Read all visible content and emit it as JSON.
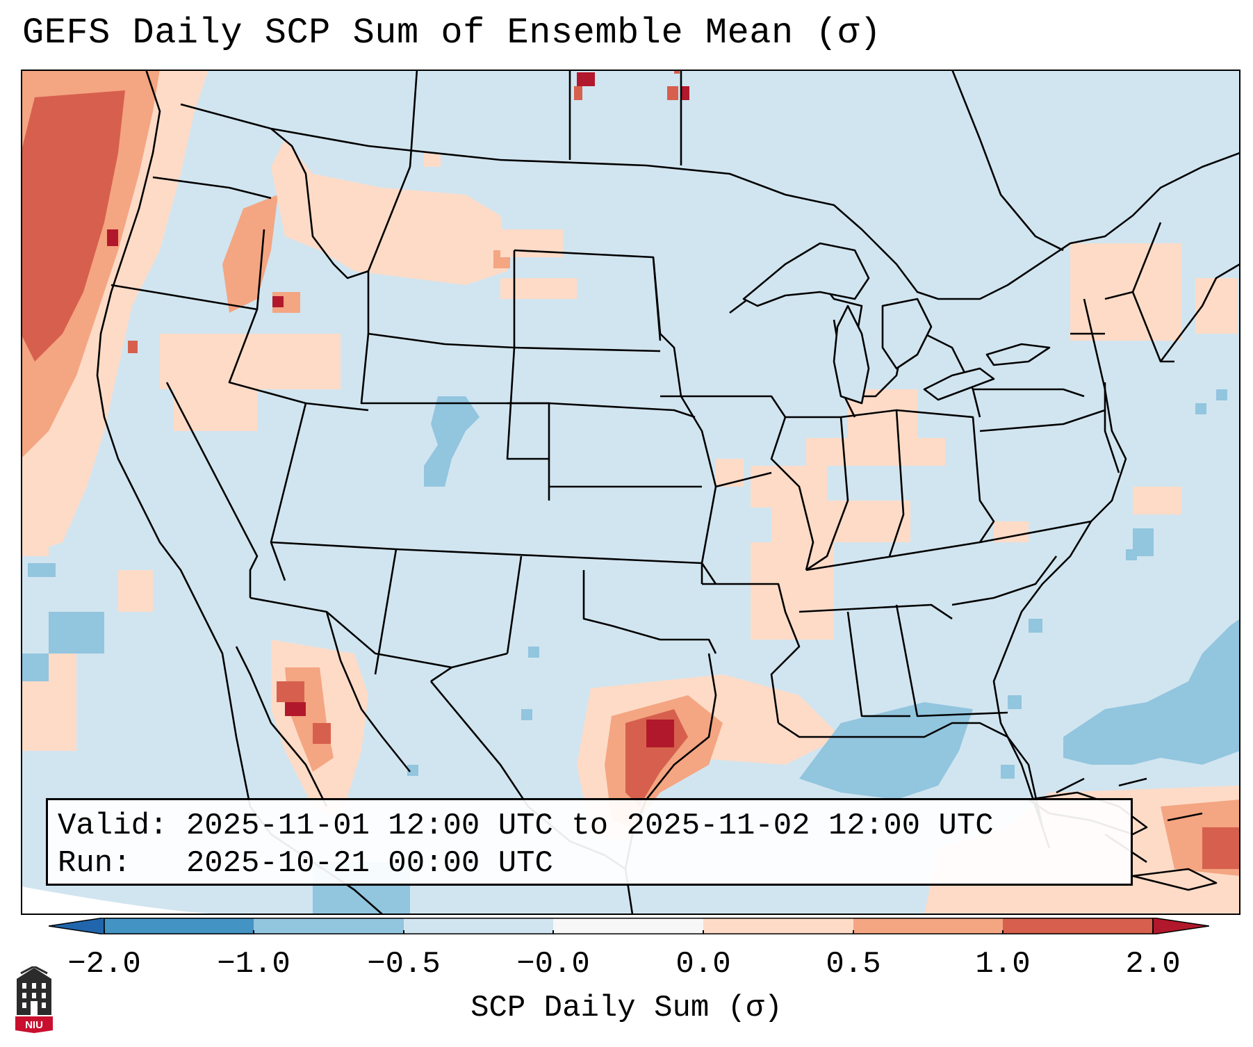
{
  "title": "GEFS Daily SCP Sum of Ensemble Mean (σ)",
  "info": {
    "valid_label": "Valid:",
    "valid_text": "2025-11-01 12:00 UTC to 2025-11-02 12:00 UTC",
    "run_label": "Run:",
    "run_text": "2025-10-21 00:00 UTC"
  },
  "colorbar": {
    "label": "SCP Daily Sum (σ)",
    "ticks": [
      "−2.0",
      "−1.0",
      "−0.5",
      "−0.0",
      "0.0",
      "0.5",
      "1.0",
      "2.0"
    ],
    "colors": [
      "#4393c3",
      "#92c5de",
      "#d1e5f0",
      "#f7f7f7",
      "#fddbc7",
      "#f4a582",
      "#d6604d"
    ],
    "extend_low_color": "#2166ac",
    "extend_high_color": "#b2182b"
  },
  "map": {
    "background_color": "#d1e5f0",
    "boundary_color": "#000000",
    "features": [
      "pacific-northwest-high-scp",
      "texas-gulf-coast-high-scp",
      "gulf-of-california-high-scp",
      "caribbean-high-scp",
      "atlantic-low-scp",
      "gulf-low-scp",
      "colorado-low-scp"
    ]
  },
  "logo": {
    "text": "NIU"
  }
}
